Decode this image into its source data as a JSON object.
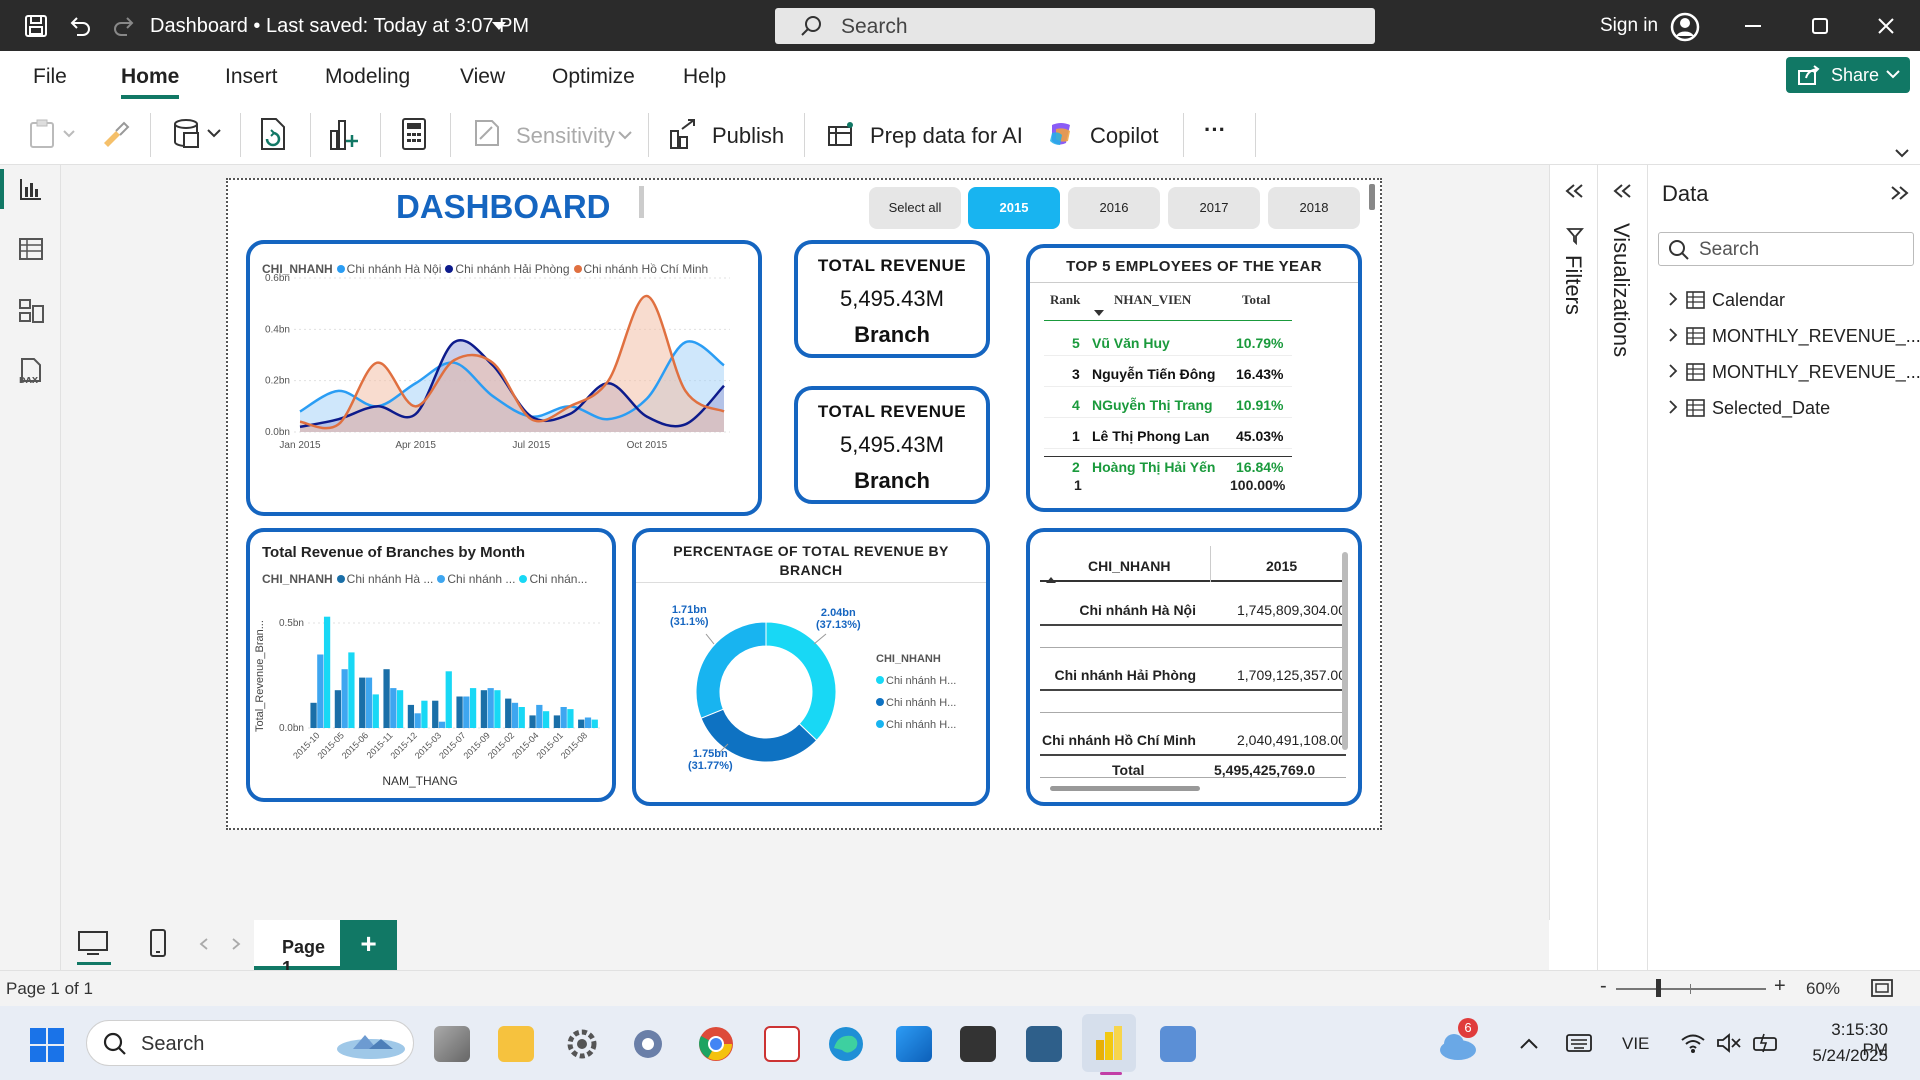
{
  "titlebar": {
    "doc_title": "Dashboard • Last saved: Today at 3:07 PM",
    "search_placeholder": "Search",
    "sign_in": "Sign in"
  },
  "menu": {
    "items": [
      "File",
      "Home",
      "Insert",
      "Modeling",
      "View",
      "Optimize",
      "Help"
    ],
    "active": "Home",
    "share_label": "Share"
  },
  "ribbon": {
    "sensitivity": "Sensitivity",
    "publish": "Publish",
    "prep_data": "Prep data for AI",
    "copilot": "Copilot",
    "more": "···"
  },
  "report": {
    "title": "DASHBOARD",
    "slicer": [
      "Select all",
      "2015",
      "2016",
      "2017",
      "2018"
    ],
    "slicer_selected": "2015",
    "line_chart": {
      "legend_title": "CHI_NHANH",
      "series_names": [
        "Chi nhánh Hà Nội",
        "Chi nhánh Hải Phòng",
        "Chi nhánh Hồ Chí Minh"
      ],
      "y_ticks": [
        "0.6bn",
        "0.4bn",
        "0.2bn",
        "0.0bn"
      ],
      "x_ticks": [
        "Jan 2015",
        "Apr 2015",
        "Jul 2015",
        "Oct 2015"
      ]
    },
    "kpi1": {
      "title": "TOTAL REVENUE",
      "value": "5,495.43M",
      "label": "Branch"
    },
    "kpi2": {
      "title": "TOTAL REVENUE",
      "value": "5,495.43M",
      "label": "Branch"
    },
    "top5": {
      "title": "TOP 5 EMPLOYEES OF THE YEAR",
      "headers": [
        "Rank",
        "NHAN_VIEN",
        "Total"
      ],
      "rows": [
        {
          "rank": "5",
          "name": "Vũ Văn Huy",
          "total": "10.79%",
          "green": true
        },
        {
          "rank": "3",
          "name": "Nguyễn Tiến Đông",
          "total": "16.43%",
          "green": false
        },
        {
          "rank": "4",
          "name": "NGuyễn Thị Trang",
          "total": "10.91%",
          "green": true
        },
        {
          "rank": "1",
          "name": "Lê Thị Phong Lan",
          "total": "45.03%",
          "green": false
        },
        {
          "rank": "2",
          "name": "Hoàng Thị Hải Yến",
          "total": "16.84%",
          "green": true
        }
      ],
      "total_row": {
        "rank": "1",
        "name": "",
        "total": "100.00%"
      }
    },
    "bar_chart": {
      "title": "Total Revenue of Branches by Month",
      "legend_title": "CHI_NHANH",
      "legend_items": [
        "Chi nhánh Hà ...",
        "Chi nhánh ...",
        "Chi nhán..."
      ],
      "y_label": "Total_Revenue_Bran...",
      "y_ticks": [
        "0.5bn",
        "0.0bn"
      ],
      "x_label": "NAM_THANG",
      "x_ticks": [
        "2015-10",
        "2015-05",
        "2015-06",
        "2015-11",
        "2015-12",
        "2015-03",
        "2015-07",
        "2015-09",
        "2015-02",
        "2015-04",
        "2015-01",
        "2015-08"
      ]
    },
    "donut": {
      "title": "PERCENTAGE OF TOTAL REVENUE BY BRANCH",
      "legend_title": "CHI_NHANH",
      "legend_items": [
        "Chi nhánh H...",
        "Chi nhánh H...",
        "Chi nhánh H..."
      ],
      "labels": [
        {
          "value": "2.04bn",
          "pct": "(37.13%)"
        },
        {
          "value": "1.75bn",
          "pct": "(31.77%)"
        },
        {
          "value": "1.71bn",
          "pct": "(31.1%)"
        }
      ]
    },
    "matrix": {
      "headers": [
        "CHI_NHANH",
        "2015"
      ],
      "rows": [
        {
          "branch": "Chi nhánh Hà Nội",
          "value": "1,745,809,304.00"
        },
        {
          "branch": "Chi nhánh Hải Phòng",
          "value": "1,709,125,357.00"
        },
        {
          "branch": "Chi nhánh Hồ Chí Minh",
          "value": "2,040,491,108.00"
        }
      ],
      "total_label": "Total",
      "total_value": "5,495,425,769.0"
    }
  },
  "panes": {
    "filters": "Filters",
    "visualizations": "Visualizations",
    "data_title": "Data",
    "data_search": "Search",
    "fields": [
      "Calendar",
      "MONTHLY_REVENUE_...",
      "MONTHLY_REVENUE_...",
      "Selected_Date"
    ]
  },
  "pages": {
    "tab": "Page 1",
    "add": "+"
  },
  "status": {
    "page": "Page 1 of 1",
    "zoom": "60%"
  },
  "taskbar": {
    "search": "Search",
    "lang": "VIE",
    "time": "3:15:30 PM",
    "date": "5/24/2025",
    "badge": "6"
  },
  "colors": {
    "blue": "#1565c0",
    "sky": "#18c8f5",
    "navy": "#0d1b8c",
    "orange": "#e07040",
    "teal": "#117865",
    "green": "#1a9a3c"
  },
  "chart_data": [
    {
      "type": "area",
      "title": "",
      "x": [
        "Jan 2015",
        "Feb 2015",
        "Mar 2015",
        "Apr 2015",
        "May 2015",
        "Jun 2015",
        "Jul 2015",
        "Aug 2015",
        "Sep 2015",
        "Oct 2015",
        "Nov 2015",
        "Dec 2015"
      ],
      "ylim": [
        0,
        0.6
      ],
      "series": [
        {
          "name": "Chi nhánh Hà Nội",
          "values": [
            0.08,
            0.16,
            0.1,
            0.19,
            0.27,
            0.14,
            0.06,
            0.1,
            0.05,
            0.13,
            0.35,
            0.26
          ]
        },
        {
          "name": "Chi nhánh Hải Phòng",
          "values": [
            0.02,
            0.05,
            0.1,
            0.07,
            0.35,
            0.26,
            0.06,
            0.07,
            0.19,
            0.06,
            0.03,
            0.18
          ]
        },
        {
          "name": "Chi nhánh Hồ Chí Minh",
          "values": [
            0.04,
            0.03,
            0.27,
            0.1,
            0.28,
            0.27,
            0.05,
            0.1,
            0.2,
            0.53,
            0.16,
            0.08
          ]
        }
      ]
    },
    {
      "type": "bar",
      "title": "Total Revenue of Branches by Month",
      "categories": [
        "2015-10",
        "2015-05",
        "2015-06",
        "2015-11",
        "2015-12",
        "2015-03",
        "2015-07",
        "2015-09",
        "2015-02",
        "2015-04",
        "2015-01",
        "2015-08"
      ],
      "xlabel": "NAM_THANG",
      "ylabel": "Total_Revenue_Bran...",
      "ylim": [
        0,
        0.6
      ],
      "series": [
        {
          "name": "Chi nhánh Hà ...",
          "values": [
            0.12,
            0.18,
            0.24,
            0.28,
            0.11,
            0.13,
            0.15,
            0.18,
            0.14,
            0.06,
            0.06,
            0.04
          ]
        },
        {
          "name": "Chi nhánh ...",
          "values": [
            0.35,
            0.28,
            0.24,
            0.19,
            0.07,
            0.03,
            0.15,
            0.19,
            0.12,
            0.11,
            0.1,
            0.05
          ]
        },
        {
          "name": "Chi nhán...",
          "values": [
            0.53,
            0.36,
            0.16,
            0.18,
            0.13,
            0.27,
            0.19,
            0.18,
            0.1,
            0.08,
            0.09,
            0.04
          ]
        }
      ]
    },
    {
      "type": "pie",
      "title": "PERCENTAGE OF TOTAL REVENUE BY BRANCH",
      "categories": [
        "Chi nhánh H...",
        "Chi nhánh H...",
        "Chi nhánh H..."
      ],
      "values": [
        37.13,
        31.77,
        31.1
      ]
    }
  ]
}
